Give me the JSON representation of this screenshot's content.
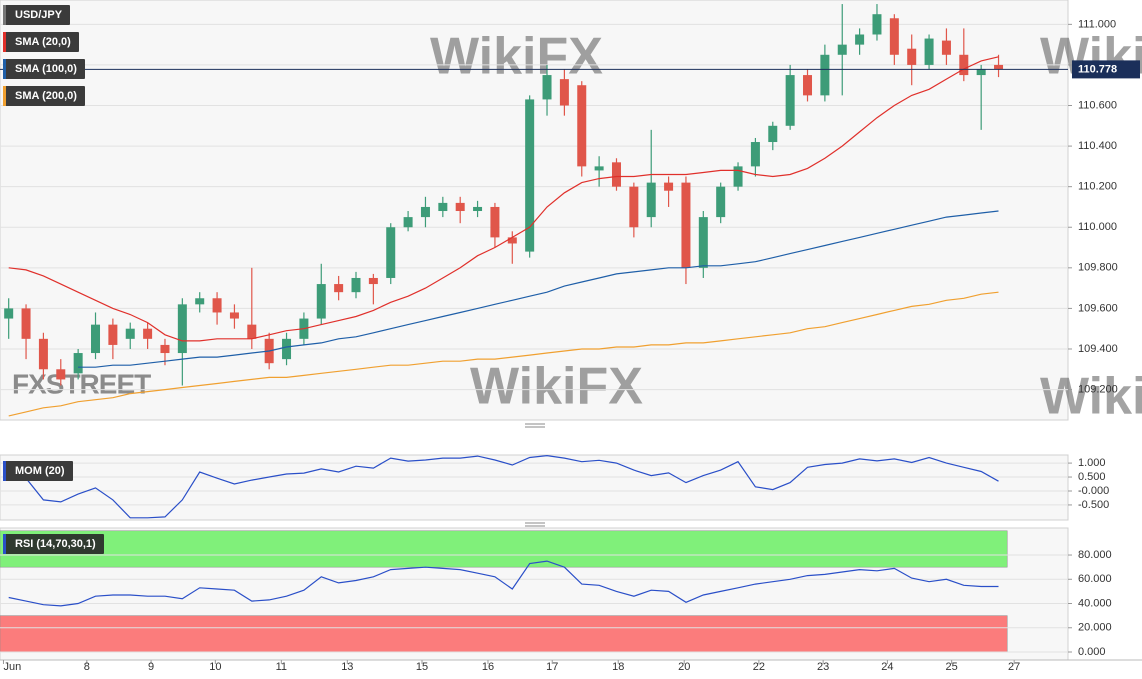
{
  "chart_data": [
    {
      "type": "candlestick",
      "symbol": "USD/JPY",
      "x": [
        0,
        1,
        2,
        3,
        4,
        5,
        6,
        7,
        8,
        9,
        10,
        11,
        12,
        13,
        14,
        15,
        16,
        17,
        18,
        19,
        20,
        21,
        22,
        23,
        24,
        25,
        26,
        27,
        28,
        29,
        30,
        31,
        32,
        33,
        34,
        35,
        36,
        37,
        38,
        39,
        40,
        41,
        42,
        43,
        44,
        45,
        46,
        47,
        48,
        49,
        50,
        51,
        52,
        53,
        54,
        55,
        56,
        57
      ],
      "ohlc": [
        [
          109.55,
          109.65,
          109.45,
          109.6
        ],
        [
          109.6,
          109.62,
          109.35,
          109.45
        ],
        [
          109.45,
          109.48,
          109.25,
          109.3
        ],
        [
          109.3,
          109.35,
          109.22,
          109.25
        ],
        [
          109.28,
          109.4,
          109.25,
          109.38
        ],
        [
          109.38,
          109.58,
          109.35,
          109.52
        ],
        [
          109.52,
          109.55,
          109.35,
          109.42
        ],
        [
          109.45,
          109.53,
          109.4,
          109.5
        ],
        [
          109.5,
          109.53,
          109.4,
          109.45
        ],
        [
          109.42,
          109.45,
          109.32,
          109.38
        ],
        [
          109.38,
          109.65,
          109.22,
          109.62
        ],
        [
          109.62,
          109.68,
          109.58,
          109.65
        ],
        [
          109.65,
          109.68,
          109.52,
          109.58
        ],
        [
          109.58,
          109.62,
          109.5,
          109.55
        ],
        [
          109.52,
          109.8,
          109.4,
          109.45
        ],
        [
          109.45,
          109.48,
          109.3,
          109.33
        ],
        [
          109.35,
          109.48,
          109.32,
          109.45
        ],
        [
          109.45,
          109.58,
          109.42,
          109.55
        ],
        [
          109.55,
          109.82,
          109.52,
          109.72
        ],
        [
          109.72,
          109.76,
          109.64,
          109.68
        ],
        [
          109.68,
          109.78,
          109.65,
          109.75
        ],
        [
          109.75,
          109.77,
          109.62,
          109.72
        ],
        [
          109.75,
          110.02,
          109.72,
          110.0
        ],
        [
          110.0,
          110.08,
          109.98,
          110.05
        ],
        [
          110.05,
          110.15,
          110.0,
          110.1
        ],
        [
          110.08,
          110.15,
          110.05,
          110.12
        ],
        [
          110.12,
          110.15,
          110.02,
          110.08
        ],
        [
          110.08,
          110.13,
          110.05,
          110.1
        ],
        [
          110.1,
          110.12,
          109.9,
          109.95
        ],
        [
          109.95,
          109.98,
          109.82,
          109.92
        ],
        [
          109.88,
          110.65,
          109.85,
          110.63
        ],
        [
          110.63,
          110.8,
          110.55,
          110.75
        ],
        [
          110.73,
          110.78,
          110.55,
          110.6
        ],
        [
          110.7,
          110.72,
          110.25,
          110.3
        ],
        [
          110.28,
          110.35,
          110.2,
          110.3
        ],
        [
          110.32,
          110.34,
          110.18,
          110.2
        ],
        [
          110.2,
          110.22,
          109.95,
          110.0
        ],
        [
          110.05,
          110.48,
          110.0,
          110.22
        ],
        [
          110.22,
          110.25,
          110.1,
          110.18
        ],
        [
          110.22,
          110.25,
          109.72,
          109.8
        ],
        [
          109.8,
          110.08,
          109.75,
          110.05
        ],
        [
          110.05,
          110.22,
          110.02,
          110.2
        ],
        [
          110.2,
          110.32,
          110.18,
          110.3
        ],
        [
          110.3,
          110.44,
          110.25,
          110.42
        ],
        [
          110.42,
          110.52,
          110.38,
          110.5
        ],
        [
          110.5,
          110.8,
          110.48,
          110.75
        ],
        [
          110.75,
          110.78,
          110.62,
          110.65
        ],
        [
          110.65,
          110.9,
          110.62,
          110.85
        ],
        [
          110.85,
          111.1,
          110.65,
          110.9
        ],
        [
          110.9,
          110.98,
          110.85,
          110.95
        ],
        [
          110.95,
          111.1,
          110.92,
          111.05
        ],
        [
          111.03,
          111.05,
          110.8,
          110.85
        ],
        [
          110.88,
          110.95,
          110.7,
          110.8
        ],
        [
          110.8,
          110.95,
          110.78,
          110.93
        ],
        [
          110.92,
          110.98,
          110.8,
          110.85
        ],
        [
          110.85,
          110.98,
          110.72,
          110.75
        ],
        [
          110.75,
          110.8,
          110.48,
          110.78
        ],
        [
          110.8,
          110.85,
          110.74,
          110.78
        ]
      ],
      "up_color": "#3d9c78",
      "down_color": "#e0564a",
      "series": [
        {
          "name": "SMA (20,0)",
          "color": "#e0302b",
          "values": [
            109.8,
            109.79,
            109.76,
            109.72,
            109.68,
            109.64,
            109.6,
            109.57,
            109.53,
            109.47,
            109.44,
            109.44,
            109.45,
            109.45,
            109.45,
            109.47,
            109.49,
            109.5,
            109.52,
            109.54,
            109.56,
            109.59,
            109.63,
            109.66,
            109.7,
            109.75,
            109.8,
            109.86,
            109.9,
            109.95,
            110.0,
            110.1,
            110.17,
            110.22,
            110.24,
            110.25,
            110.25,
            110.26,
            110.26,
            110.26,
            110.27,
            110.28,
            110.28,
            110.26,
            110.25,
            110.26,
            110.29,
            110.34,
            110.4,
            110.47,
            110.54,
            110.6,
            110.65,
            110.68,
            110.73,
            110.78,
            110.82,
            110.84
          ]
        },
        {
          "name": "SMA (100,0)",
          "color": "#1f5fa8",
          "values": [
            null,
            null,
            null,
            null,
            109.31,
            109.31,
            109.32,
            109.32,
            109.33,
            109.34,
            109.35,
            109.36,
            109.36,
            109.37,
            109.38,
            109.39,
            109.41,
            109.42,
            109.43,
            109.45,
            109.46,
            109.48,
            109.5,
            109.52,
            109.54,
            109.56,
            109.58,
            109.6,
            109.62,
            109.64,
            109.66,
            109.68,
            109.71,
            109.73,
            109.75,
            109.77,
            109.78,
            109.79,
            109.8,
            109.8,
            109.81,
            109.81,
            109.82,
            109.83,
            109.85,
            109.87,
            109.89,
            109.91,
            109.93,
            109.95,
            109.97,
            109.99,
            110.01,
            110.03,
            110.05,
            110.06,
            110.07,
            110.08
          ]
        },
        {
          "name": "SMA (200,0)",
          "color": "#f0a030",
          "values": [
            109.07,
            109.09,
            109.11,
            109.12,
            109.14,
            109.15,
            109.16,
            109.18,
            109.19,
            109.2,
            109.21,
            109.22,
            109.23,
            109.24,
            109.25,
            109.26,
            109.26,
            109.27,
            109.28,
            109.29,
            109.3,
            109.31,
            109.32,
            109.32,
            109.33,
            109.34,
            109.34,
            109.35,
            109.35,
            109.36,
            109.37,
            109.38,
            109.39,
            109.4,
            109.4,
            109.41,
            109.41,
            109.42,
            109.42,
            109.43,
            109.43,
            109.44,
            109.45,
            109.46,
            109.47,
            109.48,
            109.5,
            109.51,
            109.53,
            109.55,
            109.57,
            109.59,
            109.61,
            109.62,
            109.64,
            109.65,
            109.67,
            109.68
          ]
        }
      ],
      "last_price": 110.778,
      "last_price_color": "#1b2f5a",
      "xlim": [
        -0.5,
        61
      ],
      "xticks": [
        {
          "value": -0.3,
          "label": "Jun"
        },
        {
          "value": 4.5,
          "label": "8"
        },
        {
          "value": 8.2,
          "label": "9"
        },
        {
          "value": 11.9,
          "label": "10"
        },
        {
          "value": 15.7,
          "label": "11"
        },
        {
          "value": 19.5,
          "label": "13"
        },
        {
          "value": 23.8,
          "label": "15"
        },
        {
          "value": 27.6,
          "label": "16"
        },
        {
          "value": 31.3,
          "label": "17"
        },
        {
          "value": 35.1,
          "label": "18"
        },
        {
          "value": 38.9,
          "label": "20"
        },
        {
          "value": 43.2,
          "label": "22"
        },
        {
          "value": 46.9,
          "label": "23"
        },
        {
          "value": 50.6,
          "label": "24"
        },
        {
          "value": 54.3,
          "label": "25"
        },
        {
          "value": 57.9,
          "label": "27"
        }
      ],
      "ylim": [
        109.05,
        111.12
      ],
      "yticks": [
        {
          "value": 109.2,
          "label": "109.200"
        },
        {
          "value": 109.4,
          "label": "109.400"
        },
        {
          "value": 109.6,
          "label": "109.600"
        },
        {
          "value": 109.8,
          "label": "109.800"
        },
        {
          "value": 110.0,
          "label": "110.000"
        },
        {
          "value": 110.2,
          "label": "110.200"
        },
        {
          "value": 110.4,
          "label": "110.400"
        },
        {
          "value": 110.6,
          "label": "110.600"
        },
        {
          "value": 110.8,
          "label": "110.800"
        },
        {
          "value": 111.0,
          "label": "111.000"
        }
      ],
      "grid": true
    },
    {
      "type": "line",
      "series": [
        {
          "name": "MOM (20)",
          "color": "#2a4fc8",
          "values": [
            0.54,
            0.46,
            -0.32,
            -0.39,
            -0.11,
            0.11,
            -0.32,
            -0.96,
            -0.96,
            -0.93,
            -0.32,
            0.68,
            0.46,
            0.25,
            0.39,
            0.5,
            0.61,
            0.64,
            0.79,
            0.68,
            0.89,
            0.82,
            1.18,
            1.07,
            1.11,
            1.18,
            1.18,
            1.25,
            1.11,
            0.93,
            1.2,
            1.27,
            1.18,
            1.05,
            1.1,
            1.0,
            0.75,
            0.55,
            0.65,
            0.3,
            0.55,
            0.75,
            1.05,
            0.15,
            0.05,
            0.3,
            0.85,
            0.95,
            1.0,
            1.15,
            1.08,
            1.15,
            1.02,
            1.2,
            1.0,
            0.85,
            0.7,
            0.35
          ]
        }
      ],
      "ylim": [
        -1.04,
        1.29
      ],
      "yticks": [
        {
          "value": -0.5,
          "label": "-0.500"
        },
        {
          "value": 0,
          "label": "-0.000"
        },
        {
          "value": 0.5,
          "label": "0.500"
        },
        {
          "value": 1,
          "label": "1.000"
        }
      ],
      "grid": true
    },
    {
      "type": "line",
      "series": [
        {
          "name": "RSI (14,70,30,1)",
          "color": "#2a4fc8",
          "values": [
            45,
            42,
            39,
            38,
            40,
            46,
            47,
            47,
            46,
            46,
            44,
            53,
            52,
            51,
            42,
            43,
            46,
            51,
            62,
            57,
            59,
            62,
            68,
            69,
            70,
            69,
            68,
            65,
            62,
            52,
            73,
            75,
            70,
            56,
            55,
            50,
            46,
            51,
            50,
            41,
            47,
            50,
            53,
            56,
            58,
            60,
            63,
            64,
            66,
            68,
            67,
            69,
            61,
            58,
            60,
            55,
            54,
            54
          ]
        }
      ],
      "bands": [
        {
          "range": [
            70,
            100
          ],
          "color": "#80f07a"
        },
        {
          "range": [
            0,
            30
          ],
          "color": "#fb7c7c"
        }
      ],
      "ylim": [
        -6.6,
        102.3
      ],
      "yticks": [
        {
          "value": 0,
          "label": "0.000"
        },
        {
          "value": 20,
          "label": "20.000"
        },
        {
          "value": 40,
          "label": "40.000"
        },
        {
          "value": 60,
          "label": "60.000"
        },
        {
          "value": 80,
          "label": "80.000"
        }
      ],
      "grid": true
    }
  ],
  "watermarks": [
    "WikiFX",
    "FXSTREET"
  ]
}
